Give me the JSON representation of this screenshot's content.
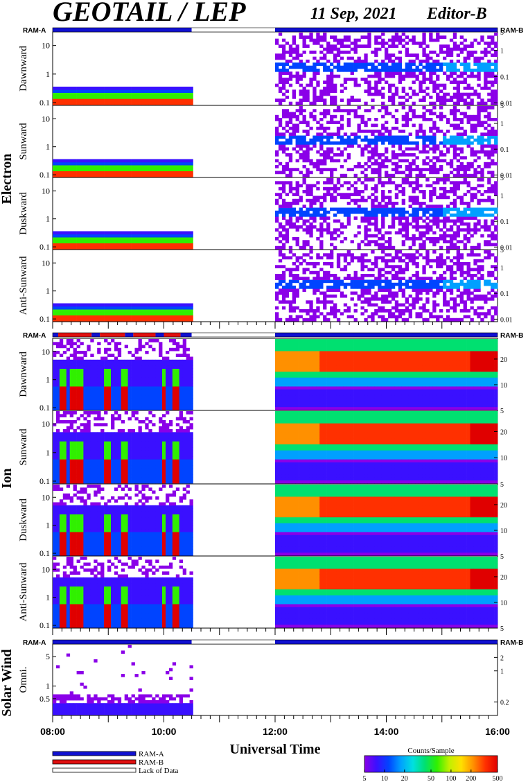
{
  "header": {
    "title": "GEOTAIL / LEP",
    "date": "11 Sep, 2021",
    "editor": "Editor-B"
  },
  "colors": {
    "ram_a": "#1010d0",
    "ram_b": "#e01010",
    "lack_of_data": "#ffffff"
  },
  "mode_labels": {
    "left": "RAM-A",
    "right": "RAM-B"
  },
  "sections": {
    "electron": "Electron",
    "ion": "Ion",
    "solar_wind": "Solar Wind"
  },
  "xaxis": {
    "title": "Universal Time",
    "tick_labels": [
      "08:00",
      "10:00",
      "12:00",
      "14:00",
      "16:00"
    ],
    "range_hours": [
      8,
      16
    ],
    "minor_tick_step_hours": 0.16667
  },
  "legend": {
    "ram_a": "RAM-A",
    "ram_b": "RAM-B",
    "lack": "Lack of Data"
  },
  "colorbar": {
    "title": "Counts/Sample",
    "tick_labels": [
      "5",
      "10",
      "20",
      "50",
      "100",
      "200",
      "500"
    ],
    "range": [
      5,
      500
    ],
    "scale": "log",
    "colormap": [
      "#8a00e8",
      "#3a10ff",
      "#0044ff",
      "#00a0ff",
      "#00e0e0",
      "#00e070",
      "#30f000",
      "#c0f000",
      "#ffe000",
      "#ff9000",
      "#ff3000",
      "#e00000"
    ]
  },
  "chart_data": [
    {
      "type": "heatmap",
      "section": "Electron",
      "panel": "Dawnward",
      "left_ticks": [
        "0.1",
        "1",
        "10"
      ],
      "right_ticks": [
        "0.01",
        "0.1",
        "1",
        "5"
      ],
      "left_range": [
        0.08,
        30
      ],
      "right_range": [
        0.008,
        5
      ],
      "data_intervals": [
        [
          8.0,
          10.5
        ],
        [
          12.0,
          16.0
        ]
      ],
      "pattern": "electron"
    },
    {
      "type": "heatmap",
      "section": "Electron",
      "panel": "Sunward",
      "left_ticks": [
        "0.1",
        "1",
        "10"
      ],
      "right_ticks": [
        "0.01",
        "0.1",
        "1",
        "5"
      ],
      "left_range": [
        0.08,
        30
      ],
      "right_range": [
        0.008,
        5
      ],
      "data_intervals": [
        [
          8.0,
          10.5
        ],
        [
          12.0,
          16.0
        ]
      ],
      "pattern": "electron"
    },
    {
      "type": "heatmap",
      "section": "Electron",
      "panel": "Duskward",
      "left_ticks": [
        "0.1",
        "1",
        "10"
      ],
      "right_ticks": [
        "0.01",
        "0.1",
        "1",
        "5"
      ],
      "left_range": [
        0.08,
        30
      ],
      "right_range": [
        0.008,
        5
      ],
      "data_intervals": [
        [
          8.0,
          10.5
        ],
        [
          12.0,
          16.0
        ]
      ],
      "pattern": "electron"
    },
    {
      "type": "heatmap",
      "section": "Electron",
      "panel": "Anti-Sunward",
      "left_ticks": [
        "0.1",
        "1",
        "10"
      ],
      "right_ticks": [
        "0.01",
        "0.1",
        "1",
        "5"
      ],
      "left_range": [
        0.08,
        30
      ],
      "right_range": [
        0.008,
        5
      ],
      "data_intervals": [
        [
          8.0,
          10.5
        ],
        [
          12.0,
          16.0
        ]
      ],
      "pattern": "electron"
    },
    {
      "type": "heatmap",
      "section": "Ion",
      "panel": "Dawnward",
      "left_ticks": [
        "0.1",
        "1",
        "10"
      ],
      "right_ticks": [
        "5",
        "10",
        "20"
      ],
      "left_range": [
        0.08,
        30
      ],
      "right_range": [
        5,
        35
      ],
      "data_intervals": [
        [
          8.0,
          10.5
        ],
        [
          12.0,
          16.0
        ]
      ],
      "pattern": "ion"
    },
    {
      "type": "heatmap",
      "section": "Ion",
      "panel": "Sunward",
      "left_ticks": [
        "0.1",
        "1",
        "10"
      ],
      "right_ticks": [
        "5",
        "10",
        "20"
      ],
      "left_range": [
        0.08,
        30
      ],
      "right_range": [
        5,
        35
      ],
      "data_intervals": [
        [
          8.0,
          10.5
        ],
        [
          12.0,
          16.0
        ]
      ],
      "pattern": "ion"
    },
    {
      "type": "heatmap",
      "section": "Ion",
      "panel": "Duskward",
      "left_ticks": [
        "0.1",
        "1",
        "10"
      ],
      "right_ticks": [
        "5",
        "10",
        "20"
      ],
      "left_range": [
        0.08,
        30
      ],
      "right_range": [
        5,
        35
      ],
      "data_intervals": [
        [
          8.0,
          10.5
        ],
        [
          12.0,
          16.0
        ]
      ],
      "pattern": "ion"
    },
    {
      "type": "heatmap",
      "section": "Ion",
      "panel": "Anti-Sunward",
      "left_ticks": [
        "0.1",
        "1",
        "10"
      ],
      "right_ticks": [
        "5",
        "10",
        "20"
      ],
      "left_range": [
        0.08,
        30
      ],
      "right_range": [
        5,
        35
      ],
      "data_intervals": [
        [
          8.0,
          10.5
        ],
        [
          12.0,
          16.0
        ]
      ],
      "pattern": "ion"
    },
    {
      "type": "heatmap",
      "section": "Solar Wind",
      "panel": "Omni.",
      "left_ticks": [
        "0.5",
        "1",
        "5"
      ],
      "right_ticks": [
        "0.2",
        "1",
        "2"
      ],
      "left_range": [
        0.2,
        10
      ],
      "right_range": [
        0.1,
        4
      ],
      "data_intervals": [
        [
          8.0,
          10.5
        ]
      ],
      "pattern": "solar"
    }
  ],
  "mode_bars": [
    {
      "group": "electron",
      "segments": [
        [
          "A",
          8.0,
          10.5
        ],
        [
          "L",
          10.5,
          12.0
        ],
        [
          "A",
          12.0,
          16.0
        ]
      ]
    },
    {
      "group": "ion",
      "segments": [
        [
          "A",
          8.0,
          8.1
        ],
        [
          "B",
          8.1,
          8.7
        ],
        [
          "A",
          8.7,
          8.85
        ],
        [
          "B",
          8.85,
          9.3
        ],
        [
          "A",
          9.3,
          9.45
        ],
        [
          "B",
          9.45,
          9.85
        ],
        [
          "A",
          9.85,
          10.0
        ],
        [
          "B",
          10.0,
          10.3
        ],
        [
          "A",
          10.3,
          10.5
        ],
        [
          "L",
          10.5,
          12.0
        ],
        [
          "A",
          12.0,
          16.0
        ]
      ]
    },
    {
      "group": "solar",
      "segments": [
        [
          "A",
          8.0,
          10.5
        ],
        [
          "L",
          10.5,
          12.0
        ],
        [
          "A",
          12.0,
          16.0
        ]
      ]
    }
  ]
}
